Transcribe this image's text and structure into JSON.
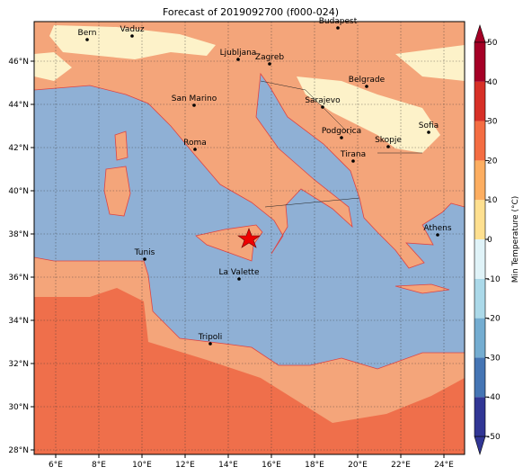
{
  "title": "Forecast of 2019092700 (f000-024)",
  "map": {
    "lon_ticks": [
      "6°E",
      "8°E",
      "10°E",
      "12°E",
      "14°E",
      "16°E",
      "18°E",
      "20°E",
      "22°E",
      "24°E"
    ],
    "lat_ticks": [
      "28°N",
      "30°N",
      "32°N",
      "34°N",
      "36°N",
      "38°N",
      "40°N",
      "42°N",
      "44°N",
      "46°N"
    ],
    "cities": [
      "Bern",
      "Vaduz",
      "Budapest",
      "Ljubljana",
      "Zagreb",
      "Belgrade",
      "San Marino",
      "Sarajevo",
      "Sofia",
      "Podgorica",
      "Skopje",
      "Roma",
      "Tirana",
      "Athens",
      "Tunis",
      "La Valette",
      "Tripoli"
    ]
  },
  "colorbar": {
    "label": "Min Temperature (°C)",
    "ticks": [
      -50,
      -40,
      -30,
      -20,
      -10,
      0,
      10,
      20,
      30,
      40,
      50
    ]
  }
}
